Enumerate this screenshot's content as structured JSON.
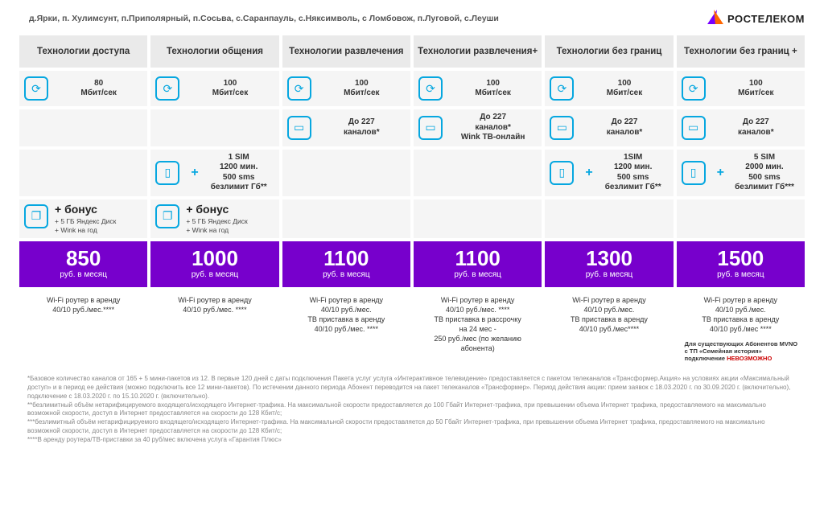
{
  "header": {
    "locations": "д.Ярки, п. Хулимсунт, п.Приполярный, п.Сосьва, с.Саранпауль, с.Няксимволь, с Ломбовож, п.Луговой, с.Леуши",
    "brand": "РОСТЕЛЕКОМ"
  },
  "columns": [
    {
      "title": "Технологии доступа"
    },
    {
      "title": "Технологии общения"
    },
    {
      "title": "Технологии развлечения"
    },
    {
      "title": "Технологии развлечения+"
    },
    {
      "title": "Технологии без границ"
    },
    {
      "title": "Технологии без границ +"
    }
  ],
  "speed": [
    "80\nМбит/сек",
    "100\nМбит/сек",
    "100\nМбит/сек",
    "100\nМбит/сек",
    "100\nМбит/сек",
    "100\nМбит/сек"
  ],
  "tv": [
    null,
    null,
    "До 227\nканалов*",
    "До 227\nканалов*\nWink ТВ-онлайн",
    "До 227\nканалов*",
    "До 227\nканалов*"
  ],
  "sim": [
    null,
    "1 SIM\n1200 мин.\n500 sms\nбезлимит Гб**",
    null,
    null,
    "1SIM\n1200 мин.\n500 sms\nбезлимит Гб**",
    "5 SIM\n2000 мин.\n500 sms\nбезлимит Гб***"
  ],
  "bonus": [
    {
      "title": "+ бонус",
      "sub": "+ 5 ГБ Яндекс Диск\n+ Wink на год"
    },
    {
      "title": "+ бонус",
      "sub": "+ 5 ГБ Яндекс Диск\n+ Wink на год"
    },
    null,
    null,
    null,
    null
  ],
  "prices": [
    {
      "amount": "850",
      "unit": "руб. в месяц"
    },
    {
      "amount": "1000",
      "unit": "руб. в месяц"
    },
    {
      "amount": "1100",
      "unit": "руб. в месяц"
    },
    {
      "amount": "1100",
      "unit": "руб. в месяц"
    },
    {
      "amount": "1300",
      "unit": "руб. в месяц"
    },
    {
      "amount": "1500",
      "unit": "руб. в месяц"
    }
  ],
  "notes": [
    "Wi-Fi роутер в аренду\n40/10 руб./мес.****",
    "Wi-Fi роутер в аренду\n40/10 руб./мес. ****",
    "Wi-Fi роутер в аренду\n40/10 руб./мес.\nТВ приставка в аренду\n40/10 руб./мес. ****",
    "Wi-Fi роутер в аренду\n40/10 руб./мес. ****\nТВ приставка в рассрочку\nна 24 мес -\n250 руб./мес (по желанию\nабонента)",
    "Wi-Fi роутер в аренду\n40/10 руб./мес.\nТВ приставка в аренду\n40/10 руб./мес****",
    "Wi-Fi роутер в аренду\n40/10 руб./мес.\nТВ приставка в аренду\n40/10 руб./мес ****"
  ],
  "mvno_note": {
    "line1": "Для существующих Абонентов MVNO с ТП «Семейная история» подключение",
    "line2": "НЕВОЗМОЖНО"
  },
  "footnotes": "*Базовое количество каналов от 165 + 5 мини-пакетов из 12. В первые 120 дней с даты подключения Пакета услуг услуга «Интерактивное телевидение» предоставляется с пакетом телеканалов «Трансформер.Акция» на условиях акции «Максимальный доступ» и в период ее действия (можно подключить все 12 мини-пакетов). По истечении данного периода Абонент переводится на пакет телеканалов «Трансформер». Период действия акции: прием заявок с 18.03.2020 г. по 30.09.2020 г. (включительно), подключение с 18.03.2020 г. по 15.10.2020 г. (включительно).\n**безлимитный объём нетарифицируемого входящего/исходящего Интернет-трафика. На максимальной скорости предоставляется до 100 Гбайт Интернет-трафика, при превышении объема Интернет трафика, предоставляемого на максимально возможной скорости, доступ в Интернет предоставляется на скорости до 128 Кбит/с;\n***безлимитный объём нетарифицируемого входящего/исходящего Интернет-трафика. На максимальной скорости предоставляется до 50 Гбайт Интернет-трафика, при превышении объема Интернет трафика, предоставляемого на максимально возможной скорости, доступ в Интернет предоставляется на скорости до 128 Кбит/с;\n****В аренду роутера/ТВ-приставки за 40 руб/мес включена услуга «Гарантия Плюс»",
  "icons": {
    "speed": "⟳",
    "tv": "▭",
    "sim": "▯",
    "bonus": "❐"
  },
  "colors": {
    "accent": "#06a7e0",
    "price_bg": "#7700cc",
    "header_bg": "#eaeaea",
    "cell_bg": "#f5f5f5"
  }
}
